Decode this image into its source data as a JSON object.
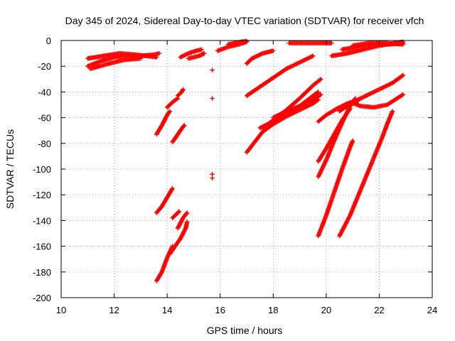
{
  "chart_data": {
    "type": "scatter",
    "title": "Day 345 of 2024, Sidereal Day-to-day VTEC variation (SDTVAR) for receiver vfch",
    "xlabel": "GPS time / hours",
    "ylabel": "SDTVAR / TECUs",
    "xlim": [
      10,
      24
    ],
    "ylim": [
      -200,
      0
    ],
    "xticks": [
      10,
      12,
      14,
      16,
      18,
      20,
      22,
      24
    ],
    "yticks": [
      0,
      -20,
      -40,
      -60,
      -80,
      -100,
      -120,
      -140,
      -160,
      -180,
      -200
    ],
    "grid": true,
    "marker": "+",
    "color": "#ff0000",
    "segments": [
      [
        [
          11.0,
          -20
        ],
        [
          11.5,
          -16
        ],
        [
          12.0,
          -13
        ],
        [
          12.5,
          -12
        ],
        [
          13.0,
          -12
        ],
        [
          13.5,
          -11
        ],
        [
          13.7,
          -10
        ]
      ],
      [
        [
          11.0,
          -14
        ],
        [
          11.6,
          -12
        ],
        [
          12.2,
          -10
        ],
        [
          12.8,
          -11
        ],
        [
          13.6,
          -13
        ]
      ],
      [
        [
          11.1,
          -22
        ],
        [
          11.8,
          -18
        ],
        [
          12.4,
          -15
        ],
        [
          13.0,
          -14
        ]
      ],
      [
        [
          13.6,
          -73
        ],
        [
          13.8,
          -66
        ],
        [
          14.0,
          -58
        ],
        [
          14.1,
          -55
        ]
      ],
      [
        [
          14.0,
          -52
        ],
        [
          14.2,
          -48
        ],
        [
          14.4,
          -45
        ]
      ],
      [
        [
          14.4,
          -43
        ],
        [
          14.55,
          -40
        ],
        [
          14.6,
          -38
        ]
      ],
      [
        [
          14.2,
          -79
        ],
        [
          14.4,
          -73
        ],
        [
          14.6,
          -67
        ],
        [
          14.65,
          -66
        ]
      ],
      [
        [
          13.6,
          -134
        ],
        [
          13.8,
          -129
        ],
        [
          14.0,
          -122
        ],
        [
          14.2,
          -115
        ]
      ],
      [
        [
          14.2,
          -138
        ],
        [
          14.35,
          -135
        ],
        [
          14.45,
          -133
        ]
      ],
      [
        [
          14.4,
          -146
        ],
        [
          14.6,
          -138
        ],
        [
          14.75,
          -134
        ]
      ],
      [
        [
          13.6,
          -187
        ],
        [
          13.8,
          -180
        ],
        [
          14.0,
          -169
        ],
        [
          14.2,
          -160
        ]
      ],
      [
        [
          14.1,
          -166
        ],
        [
          14.3,
          -160
        ],
        [
          14.5,
          -154
        ],
        [
          14.7,
          -146
        ],
        [
          14.75,
          -141
        ]
      ],
      [
        [
          14.5,
          -13
        ],
        [
          14.8,
          -10
        ],
        [
          15.1,
          -8
        ],
        [
          15.3,
          -7
        ]
      ],
      [
        [
          14.8,
          -14
        ],
        [
          15.2,
          -12
        ],
        [
          15.4,
          -10
        ]
      ],
      [
        [
          15.7,
          -23
        ]
      ],
      [
        [
          15.7,
          -45
        ]
      ],
      [
        [
          15.7,
          -104
        ]
      ],
      [
        [
          15.7,
          -107
        ]
      ],
      [
        [
          15.9,
          -8
        ],
        [
          16.3,
          -5
        ],
        [
          16.7,
          -3
        ],
        [
          17.0,
          -1
        ]
      ],
      [
        [
          16.3,
          -3
        ],
        [
          16.8,
          -1
        ],
        [
          17.0,
          -0.5
        ]
      ],
      [
        [
          17.0,
          -18
        ],
        [
          17.2,
          -14
        ],
        [
          17.6,
          -10
        ],
        [
          18.0,
          -8
        ]
      ],
      [
        [
          17.0,
          -43
        ],
        [
          17.5,
          -36
        ],
        [
          18.0,
          -29
        ],
        [
          18.5,
          -22
        ],
        [
          19.0,
          -17
        ],
        [
          19.5,
          -12
        ]
      ],
      [
        [
          17.0,
          -87
        ],
        [
          17.3,
          -79
        ],
        [
          17.6,
          -71
        ],
        [
          18.0,
          -65
        ],
        [
          18.5,
          -59
        ],
        [
          19.0,
          -54
        ],
        [
          19.5,
          -49
        ],
        [
          19.7,
          -46
        ]
      ],
      [
        [
          17.5,
          -68
        ],
        [
          18.0,
          -63
        ],
        [
          18.5,
          -57
        ],
        [
          19.0,
          -51
        ],
        [
          19.5,
          -43
        ],
        [
          19.7,
          -40
        ]
      ],
      [
        [
          17.6,
          -68
        ],
        [
          18.0,
          -62
        ],
        [
          18.5,
          -54
        ],
        [
          19.0,
          -45
        ],
        [
          19.5,
          -35
        ],
        [
          19.8,
          -30
        ]
      ],
      [
        [
          18.0,
          -60
        ],
        [
          18.5,
          -55
        ],
        [
          19.0,
          -51
        ],
        [
          19.5,
          -46
        ],
        [
          19.8,
          -42
        ]
      ],
      [
        [
          18.6,
          -2
        ],
        [
          19.2,
          -2
        ],
        [
          19.8,
          -2
        ],
        [
          20.2,
          -2
        ]
      ],
      [
        [
          19.7,
          -152
        ],
        [
          20.0,
          -136
        ],
        [
          20.3,
          -118
        ],
        [
          20.6,
          -100
        ],
        [
          20.9,
          -83
        ],
        [
          21.0,
          -78
        ]
      ],
      [
        [
          19.7,
          -106
        ],
        [
          20.0,
          -93
        ],
        [
          20.3,
          -78
        ],
        [
          20.6,
          -64
        ],
        [
          20.9,
          -51
        ],
        [
          21.1,
          -45
        ]
      ],
      [
        [
          19.7,
          -94
        ],
        [
          20.0,
          -84
        ],
        [
          20.3,
          -73
        ],
        [
          20.6,
          -62
        ],
        [
          20.9,
          -53
        ]
      ],
      [
        [
          19.7,
          -63
        ],
        [
          20.0,
          -58
        ],
        [
          20.4,
          -53
        ],
        [
          20.8,
          -49
        ],
        [
          21.2,
          -47
        ]
      ],
      [
        [
          20.5,
          -55
        ],
        [
          21.0,
          -48
        ],
        [
          21.5,
          -43
        ],
        [
          22.0,
          -38
        ],
        [
          22.5,
          -33
        ],
        [
          22.9,
          -27
        ]
      ],
      [
        [
          20.9,
          -48
        ],
        [
          21.3,
          -51
        ],
        [
          21.8,
          -52
        ],
        [
          22.3,
          -50
        ],
        [
          22.9,
          -42
        ]
      ],
      [
        [
          20.5,
          -152
        ],
        [
          20.9,
          -136
        ],
        [
          21.3,
          -116
        ],
        [
          21.7,
          -96
        ],
        [
          22.1,
          -76
        ],
        [
          22.3,
          -65
        ],
        [
          22.5,
          -55
        ]
      ],
      [
        [
          20.2,
          -12
        ],
        [
          20.8,
          -10
        ],
        [
          21.4,
          -7
        ],
        [
          22.0,
          -4
        ],
        [
          22.6,
          -2
        ],
        [
          22.9,
          -1
        ]
      ],
      [
        [
          20.6,
          -7
        ],
        [
          21.2,
          -5
        ],
        [
          21.8,
          -3
        ],
        [
          22.4,
          -3
        ],
        [
          22.9,
          -2
        ]
      ],
      [
        [
          21.0,
          -4
        ],
        [
          21.6,
          -2
        ],
        [
          22.2,
          -2
        ],
        [
          22.9,
          -3
        ]
      ]
    ]
  }
}
